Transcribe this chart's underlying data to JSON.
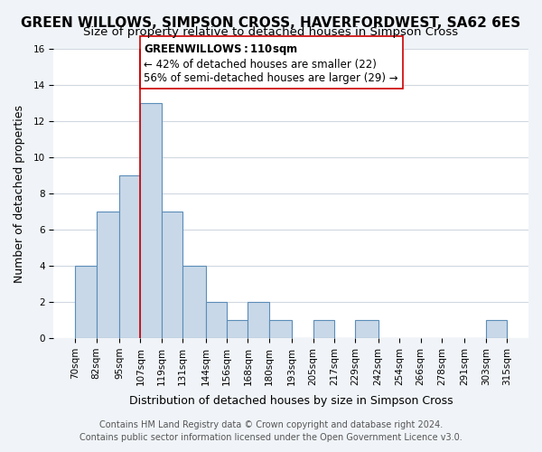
{
  "title": "GREEN WILLOWS, SIMPSON CROSS, HAVERFORDWEST, SA62 6ES",
  "subtitle": "Size of property relative to detached houses in Simpson Cross",
  "xlabel": "Distribution of detached houses by size in Simpson Cross",
  "ylabel": "Number of detached properties",
  "bin_edges": [
    70,
    82,
    95,
    107,
    119,
    131,
    144,
    156,
    168,
    180,
    193,
    205,
    217,
    229,
    242,
    254,
    266,
    278,
    291,
    303,
    315
  ],
  "bin_labels": [
    "70sqm",
    "82sqm",
    "95sqm",
    "107sqm",
    "119sqm",
    "131sqm",
    "144sqm",
    "156sqm",
    "168sqm",
    "180sqm",
    "193sqm",
    "205sqm",
    "217sqm",
    "229sqm",
    "242sqm",
    "254sqm",
    "266sqm",
    "278sqm",
    "291sqm",
    "303sqm",
    "315sqm"
  ],
  "counts": [
    4,
    7,
    9,
    13,
    7,
    4,
    2,
    1,
    2,
    1,
    0,
    1,
    0,
    1,
    0,
    0,
    0,
    0,
    0,
    1
  ],
  "bar_color": "#c8d8e8",
  "bar_edge_color": "#5b8db8",
  "grid_color": "#d0d8e0",
  "property_line_x": 107,
  "property_line_color": "#cc0000",
  "annotation_title": "GREEN WILLOWS: 110sqm",
  "annotation_line1": "← 42% of detached houses are smaller (22)",
  "annotation_line2": "56% of semi-detached houses are larger (29) →",
  "annotation_box_color": "#ffffff",
  "annotation_box_edge": "#cc0000",
  "ylim": [
    0,
    16
  ],
  "yticks": [
    0,
    2,
    4,
    6,
    8,
    10,
    12,
    14,
    16
  ],
  "footer_line1": "Contains HM Land Registry data © Crown copyright and database right 2024.",
  "footer_line2": "Contains public sector information licensed under the Open Government Licence v3.0.",
  "background_color": "#f0f4f8",
  "plot_background_color": "#ffffff",
  "title_fontsize": 11,
  "subtitle_fontsize": 9.5,
  "axis_label_fontsize": 9,
  "tick_label_fontsize": 7.5,
  "annotation_fontsize": 8.5,
  "footer_fontsize": 7
}
